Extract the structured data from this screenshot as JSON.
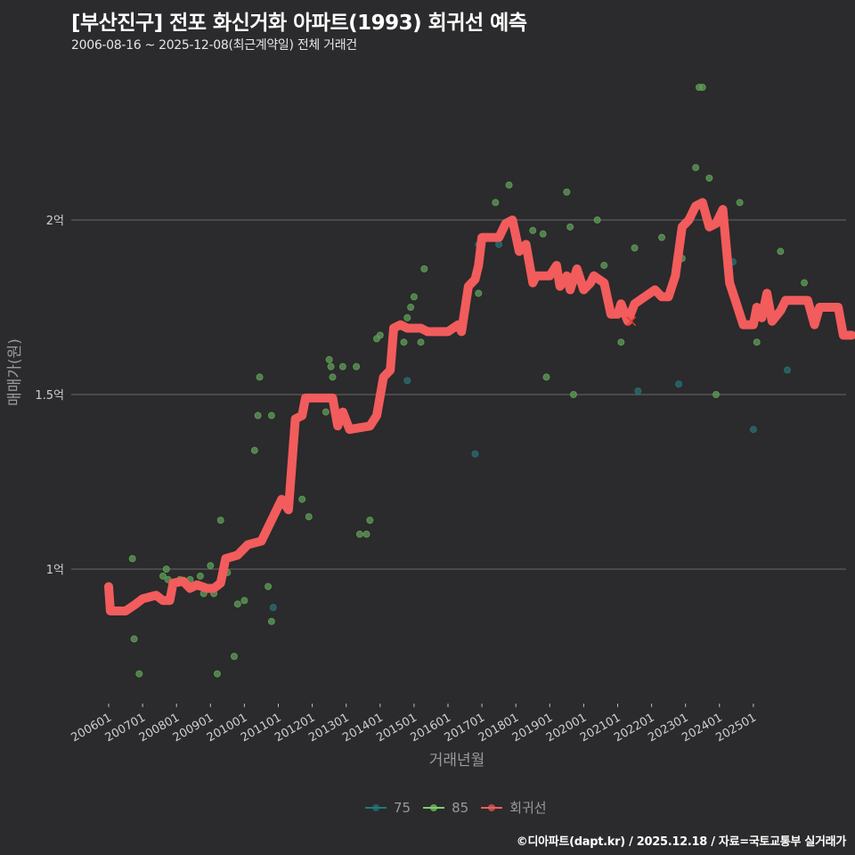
{
  "header": {
    "title": "[부산진구] 전포 화신거화 아파트(1993) 회귀선 예측",
    "subtitle": "2006-08-16 ~ 2025-12-08(최근계약일) 전체 거래건"
  },
  "axes": {
    "xlabel": "거래년월",
    "ylabel": "매매가(원)",
    "yticks": [
      {
        "label": "2억",
        "value": 2.0
      },
      {
        "label": "1.5억",
        "value": 1.5
      },
      {
        "label": "1억",
        "value": 1.0
      }
    ],
    "xticks": [
      "200601",
      "200701",
      "200801",
      "200901",
      "201001",
      "201101",
      "201201",
      "201301",
      "201401",
      "201501",
      "201601",
      "201701",
      "201801",
      "201901",
      "202001",
      "202101",
      "202201",
      "202301",
      "202401",
      "202501"
    ]
  },
  "legend": [
    {
      "label": "75",
      "color": "#1f7a7a"
    },
    {
      "label": "85",
      "color": "#7ccf6a"
    },
    {
      "label": "회귀선",
      "color": "#f25c5c"
    }
  ],
  "caption": "©디아파트(dapt.kr) / 2025.12.18 / 자료=국토교통부 실거래가",
  "colors": {
    "background": "#2b2a2c",
    "grid": "#6a6a6a",
    "line": "#f25c5c",
    "pt75": "#2a6f73",
    "pt85": "#5f9c58"
  },
  "chart_data": {
    "type": "line",
    "title": "[부산진구] 전포 화신거화 아파트(1993) 회귀선 예측",
    "subtitle": "2006-08-16 ~ 2025-12-08(최근계약일) 전체 거래건",
    "xlabel": "거래년월",
    "ylabel": "매매가(원)",
    "ylim": [
      0.62,
      2.4
    ],
    "yunit": "억원",
    "grid": true,
    "legend_position": "bottom",
    "series": [
      {
        "name": "회귀선",
        "type": "line",
        "points": [
          [
            2006.0,
            0.95
          ],
          [
            2006.05,
            0.88
          ],
          [
            2006.5,
            0.88
          ],
          [
            2006.8,
            0.9
          ],
          [
            2007.0,
            0.915
          ],
          [
            2007.4,
            0.925
          ],
          [
            2007.6,
            0.91
          ],
          [
            2007.8,
            0.91
          ],
          [
            2007.9,
            0.96
          ],
          [
            2008.2,
            0.965
          ],
          [
            2008.4,
            0.945
          ],
          [
            2008.6,
            0.955
          ],
          [
            2008.9,
            0.945
          ],
          [
            2009.1,
            0.945
          ],
          [
            2009.3,
            0.96
          ],
          [
            2009.45,
            1.03
          ],
          [
            2009.8,
            1.04
          ],
          [
            2010.1,
            1.07
          ],
          [
            2010.5,
            1.08
          ],
          [
            2010.8,
            1.14
          ],
          [
            2011.1,
            1.2
          ],
          [
            2011.3,
            1.17
          ],
          [
            2011.5,
            1.43
          ],
          [
            2011.7,
            1.44
          ],
          [
            2011.8,
            1.49
          ],
          [
            2012.6,
            1.49
          ],
          [
            2012.75,
            1.41
          ],
          [
            2012.9,
            1.45
          ],
          [
            2013.1,
            1.4
          ],
          [
            2013.7,
            1.41
          ],
          [
            2013.9,
            1.44
          ],
          [
            2014.1,
            1.55
          ],
          [
            2014.3,
            1.57
          ],
          [
            2014.4,
            1.69
          ],
          [
            2014.6,
            1.7
          ],
          [
            2014.8,
            1.69
          ],
          [
            2015.2,
            1.69
          ],
          [
            2015.4,
            1.68
          ],
          [
            2016.0,
            1.68
          ],
          [
            2016.3,
            1.7
          ],
          [
            2016.4,
            1.68
          ],
          [
            2016.6,
            1.81
          ],
          [
            2016.8,
            1.83
          ],
          [
            2016.9,
            1.87
          ],
          [
            2017.0,
            1.95
          ],
          [
            2017.5,
            1.95
          ],
          [
            2017.7,
            1.99
          ],
          [
            2017.9,
            2.0
          ],
          [
            2018.1,
            1.91
          ],
          [
            2018.3,
            1.93
          ],
          [
            2018.5,
            1.82
          ],
          [
            2018.6,
            1.84
          ],
          [
            2019.0,
            1.84
          ],
          [
            2019.2,
            1.87
          ],
          [
            2019.3,
            1.81
          ],
          [
            2019.5,
            1.84
          ],
          [
            2019.6,
            1.8
          ],
          [
            2019.8,
            1.86
          ],
          [
            2020.0,
            1.8
          ],
          [
            2020.2,
            1.82
          ],
          [
            2020.3,
            1.84
          ],
          [
            2020.6,
            1.82
          ],
          [
            2020.8,
            1.73
          ],
          [
            2021.0,
            1.73
          ],
          [
            2021.1,
            1.76
          ],
          [
            2021.3,
            1.71
          ],
          [
            2021.5,
            1.76
          ],
          [
            2021.8,
            1.78
          ],
          [
            2022.1,
            1.8
          ],
          [
            2022.3,
            1.78
          ],
          [
            2022.5,
            1.78
          ],
          [
            2022.7,
            1.84
          ],
          [
            2022.9,
            1.98
          ],
          [
            2023.1,
            2.0
          ],
          [
            2023.3,
            2.04
          ],
          [
            2023.5,
            2.05
          ],
          [
            2023.7,
            1.98
          ],
          [
            2023.9,
            1.99
          ],
          [
            2024.1,
            2.03
          ],
          [
            2024.3,
            1.82
          ],
          [
            2024.5,
            1.76
          ],
          [
            2024.7,
            1.7
          ],
          [
            2025.0,
            1.7
          ],
          [
            2025.1,
            1.75
          ],
          [
            2025.25,
            1.72
          ],
          [
            2025.4,
            1.79
          ],
          [
            2025.55,
            1.71
          ],
          [
            2025.8,
            1.74
          ],
          [
            2025.95,
            1.77
          ],
          [
            2026.6,
            1.77
          ],
          [
            2026.8,
            1.7
          ],
          [
            2026.95,
            1.75
          ],
          [
            2027.5,
            1.75
          ],
          [
            2027.65,
            1.67
          ],
          [
            2027.9,
            1.67
          ]
        ]
      },
      {
        "name": "75",
        "type": "scatter",
        "points": [
          [
            2010.85,
            0.89
          ],
          [
            2014.8,
            1.54
          ],
          [
            2016.8,
            1.33
          ],
          [
            2016.9,
            1.93
          ],
          [
            2017.5,
            1.93
          ],
          [
            2021.6,
            1.51
          ],
          [
            2022.8,
            1.53
          ],
          [
            2024.4,
            1.88
          ],
          [
            2025.0,
            1.4
          ],
          [
            2026.0,
            1.57
          ]
        ]
      },
      {
        "name": "85",
        "type": "scatter",
        "points": [
          [
            2006.7,
            1.03
          ],
          [
            2006.75,
            0.8
          ],
          [
            2006.9,
            0.7
          ],
          [
            2007.6,
            0.98
          ],
          [
            2007.7,
            1.0
          ],
          [
            2007.75,
            0.97
          ],
          [
            2008.1,
            0.97
          ],
          [
            2008.4,
            0.97
          ],
          [
            2008.7,
            0.98
          ],
          [
            2008.8,
            0.93
          ],
          [
            2009.0,
            1.01
          ],
          [
            2009.1,
            0.93
          ],
          [
            2009.2,
            0.7
          ],
          [
            2009.3,
            1.14
          ],
          [
            2009.5,
            0.99
          ],
          [
            2009.7,
            0.75
          ],
          [
            2009.8,
            0.9
          ],
          [
            2010.0,
            0.91
          ],
          [
            2010.3,
            1.34
          ],
          [
            2010.4,
            1.44
          ],
          [
            2010.45,
            1.55
          ],
          [
            2010.7,
            0.95
          ],
          [
            2010.8,
            0.85
          ],
          [
            2010.8,
            1.44
          ],
          [
            2011.7,
            1.2
          ],
          [
            2011.9,
            1.15
          ],
          [
            2012.4,
            1.45
          ],
          [
            2012.5,
            1.6
          ],
          [
            2012.55,
            1.58
          ],
          [
            2012.6,
            1.55
          ],
          [
            2012.9,
            1.58
          ],
          [
            2013.3,
            1.58
          ],
          [
            2013.4,
            1.1
          ],
          [
            2013.6,
            1.1
          ],
          [
            2013.7,
            1.14
          ],
          [
            2013.9,
            1.66
          ],
          [
            2014.0,
            1.67
          ],
          [
            2014.7,
            1.65
          ],
          [
            2014.8,
            1.72
          ],
          [
            2014.9,
            1.75
          ],
          [
            2015.0,
            1.78
          ],
          [
            2015.2,
            1.65
          ],
          [
            2015.3,
            1.86
          ],
          [
            2016.9,
            1.79
          ],
          [
            2017.4,
            2.05
          ],
          [
            2017.8,
            2.1
          ],
          [
            2018.5,
            1.97
          ],
          [
            2018.8,
            1.96
          ],
          [
            2018.9,
            1.55
          ],
          [
            2019.5,
            2.08
          ],
          [
            2019.6,
            1.98
          ],
          [
            2019.7,
            1.5
          ],
          [
            2020.4,
            2.0
          ],
          [
            2020.6,
            1.87
          ],
          [
            2021.1,
            1.65
          ],
          [
            2021.5,
            1.92
          ],
          [
            2022.3,
            1.95
          ],
          [
            2022.9,
            1.89
          ],
          [
            2023.3,
            2.15
          ],
          [
            2023.4,
            2.38
          ],
          [
            2023.5,
            2.38
          ],
          [
            2023.7,
            2.12
          ],
          [
            2023.9,
            1.5
          ],
          [
            2024.6,
            2.05
          ],
          [
            2025.1,
            1.65
          ],
          [
            2025.8,
            1.91
          ],
          [
            2026.5,
            1.82
          ]
        ]
      }
    ],
    "markers": [
      {
        "type": "x",
        "x": 2021.4,
        "y": 1.71,
        "color": "#e23b2e"
      }
    ]
  }
}
